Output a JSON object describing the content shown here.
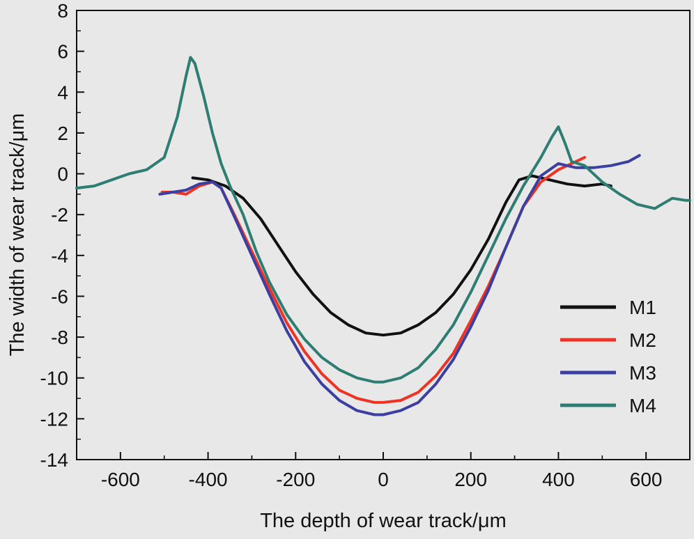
{
  "chart_data": {
    "type": "line",
    "xlabel": "The depth of wear track/μm",
    "ylabel": "The width of wear track/μm",
    "xlim": [
      -700,
      700
    ],
    "ylim": [
      -14,
      8
    ],
    "xticks": [
      -600,
      -400,
      -200,
      0,
      200,
      400,
      600
    ],
    "xtick_labels": [
      "-600",
      "-400",
      "-200",
      "0",
      "200",
      "400",
      "600"
    ],
    "yticks": [
      -14,
      -12,
      -10,
      -8,
      -6,
      -4,
      -2,
      0,
      2,
      4,
      6,
      8
    ],
    "ytick_labels": [
      "-14",
      "-12",
      "-10",
      "-8",
      "-6",
      "-4",
      "-2",
      "0",
      "2",
      "4",
      "6",
      "8"
    ],
    "legend_position": "bottom-right",
    "series": [
      {
        "name": "M1",
        "color": "#111111",
        "x": [
          -435,
          -400,
          -360,
          -320,
          -280,
          -240,
          -200,
          -160,
          -120,
          -80,
          -40,
          0,
          40,
          80,
          120,
          160,
          200,
          240,
          280,
          310,
          340,
          380,
          420,
          460,
          500,
          520
        ],
        "y": [
          -0.2,
          -0.3,
          -0.6,
          -1.2,
          -2.2,
          -3.5,
          -4.8,
          -5.9,
          -6.8,
          -7.4,
          -7.8,
          -7.9,
          -7.8,
          -7.4,
          -6.8,
          -5.9,
          -4.7,
          -3.2,
          -1.4,
          -0.3,
          -0.1,
          -0.3,
          -0.5,
          -0.6,
          -0.5,
          -0.6
        ]
      },
      {
        "name": "M2",
        "color": "#ee3324",
        "x": [
          -505,
          -480,
          -450,
          -420,
          -390,
          -370,
          -340,
          -300,
          -260,
          -220,
          -180,
          -140,
          -100,
          -60,
          -20,
          0,
          40,
          80,
          120,
          160,
          200,
          240,
          280,
          320,
          360,
          400,
          430,
          460
        ],
        "y": [
          -0.9,
          -0.9,
          -1.0,
          -0.6,
          -0.4,
          -0.7,
          -2.0,
          -3.8,
          -5.6,
          -7.3,
          -8.7,
          -9.8,
          -10.6,
          -11.0,
          -11.2,
          -11.2,
          -11.1,
          -10.7,
          -9.9,
          -8.8,
          -7.2,
          -5.5,
          -3.6,
          -1.6,
          -0.4,
          0.2,
          0.5,
          0.8
        ]
      },
      {
        "name": "M3",
        "color": "#3a3fa0",
        "x": [
          -510,
          -480,
          -450,
          -420,
          -390,
          -370,
          -340,
          -300,
          -260,
          -220,
          -180,
          -140,
          -100,
          -60,
          -20,
          0,
          40,
          80,
          120,
          160,
          200,
          240,
          280,
          320,
          360,
          400,
          440,
          480,
          520,
          560,
          585
        ],
        "y": [
          -1.0,
          -0.9,
          -0.8,
          -0.5,
          -0.4,
          -0.7,
          -2.1,
          -4.0,
          -5.9,
          -7.7,
          -9.2,
          -10.3,
          -11.1,
          -11.6,
          -11.8,
          -11.8,
          -11.6,
          -11.2,
          -10.3,
          -9.1,
          -7.5,
          -5.7,
          -3.6,
          -1.6,
          -0.1,
          0.5,
          0.3,
          0.3,
          0.4,
          0.6,
          0.9
        ]
      },
      {
        "name": "M4",
        "color": "#2e7d72",
        "x": [
          -700,
          -660,
          -620,
          -580,
          -540,
          -500,
          -470,
          -450,
          -440,
          -430,
          -410,
          -390,
          -370,
          -350,
          -320,
          -290,
          -260,
          -220,
          -180,
          -140,
          -100,
          -60,
          -20,
          0,
          40,
          80,
          120,
          160,
          200,
          240,
          280,
          320,
          360,
          385,
          400,
          415,
          430,
          460,
          500,
          540,
          580,
          620,
          660,
          690,
          700
        ],
        "y": [
          -0.7,
          -0.6,
          -0.3,
          0.0,
          0.2,
          0.8,
          2.8,
          4.8,
          5.7,
          5.4,
          3.8,
          2.0,
          0.5,
          -0.6,
          -2.0,
          -3.8,
          -5.3,
          -6.9,
          -8.1,
          -9.0,
          -9.6,
          -10.0,
          -10.2,
          -10.2,
          -10.0,
          -9.5,
          -8.6,
          -7.4,
          -5.8,
          -4.0,
          -2.2,
          -0.6,
          0.8,
          1.8,
          2.3,
          1.5,
          0.6,
          0.4,
          -0.4,
          -1.0,
          -1.5,
          -1.7,
          -1.2,
          -1.3,
          -1.3
        ]
      }
    ]
  }
}
